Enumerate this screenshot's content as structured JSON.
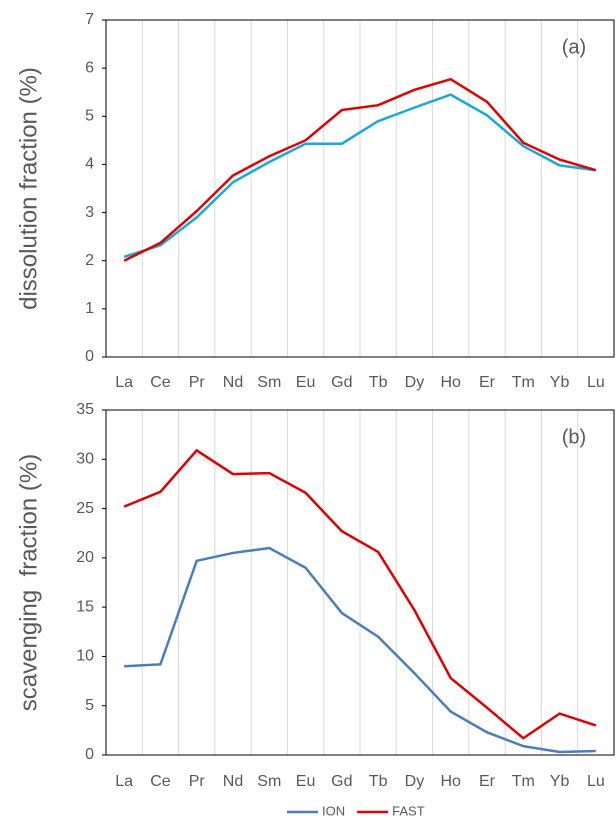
{
  "chart_data": [
    {
      "type": "line",
      "ylabel": "dissolution fraction (%)",
      "annotation": "(a)",
      "categories": [
        "La",
        "Ce",
        "Pr",
        "Nd",
        "Sm",
        "Eu",
        "Gd",
        "Tb",
        "Dy",
        "Ho",
        "Er",
        "Tm",
        "Yb",
        "Lu"
      ],
      "series": [
        {
          "color": "#1aa7dd",
          "values": [
            2.08,
            2.32,
            2.9,
            3.63,
            4.05,
            4.43,
            4.43,
            4.9,
            5.18,
            5.45,
            5.02,
            4.38,
            3.98,
            3.88
          ]
        },
        {
          "color": "#e00000",
          "values": [
            2.0,
            2.37,
            3.03,
            3.77,
            4.17,
            4.5,
            5.13,
            5.23,
            5.55,
            5.77,
            5.3,
            4.45,
            4.1,
            3.88
          ]
        }
      ],
      "ylim": [
        0,
        7
      ],
      "yticks": [
        0,
        1,
        2,
        3,
        4,
        5,
        6,
        7
      ],
      "grid": true
    },
    {
      "type": "line",
      "ylabel": "scavenging  fraction (%)",
      "annotation": "(b)",
      "categories": [
        "La",
        "Ce",
        "Pr",
        "Nd",
        "Sm",
        "Eu",
        "Gd",
        "Tb",
        "Dy",
        "Ho",
        "Er",
        "Tm",
        "Yb",
        "Lu"
      ],
      "series": [
        {
          "name": "ION",
          "color": "#4a7ebb",
          "values": [
            9.0,
            9.2,
            19.7,
            20.5,
            21.0,
            19.0,
            14.4,
            12.0,
            8.3,
            4.4,
            2.3,
            0.9,
            0.3,
            0.4
          ]
        },
        {
          "name": "FAST",
          "color": "#e00000",
          "values": [
            25.2,
            26.7,
            30.9,
            28.5,
            28.6,
            26.6,
            22.7,
            20.6,
            14.7,
            7.8,
            4.8,
            1.7,
            4.2,
            3.0
          ]
        }
      ],
      "ylim": [
        0,
        35
      ],
      "yticks": [
        0,
        5,
        10,
        15,
        20,
        25,
        30,
        35
      ],
      "grid": true,
      "legend": "bottom"
    }
  ]
}
